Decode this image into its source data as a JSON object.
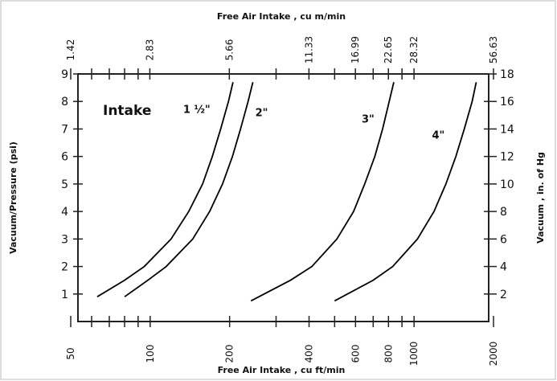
{
  "chart_data": {
    "type": "line",
    "title_top": "Free Air Intake , cu m/min",
    "xlabel": "Free Air Intake , cu ft/min",
    "ylabel": "Vacuum/Pressure (psi)",
    "y2label": "Vacuum , in. of Hg",
    "annotation": "Intake",
    "xscale": "log",
    "xlim": [
      50,
      2000
    ],
    "xticks": [
      50,
      100,
      200,
      400,
      600,
      800,
      1000,
      2000
    ],
    "xminor_ticks": [
      60,
      70,
      80,
      90,
      300,
      500,
      700,
      900
    ],
    "x2lim": [
      1.42,
      56.63
    ],
    "x2ticks": [
      1.42,
      2.83,
      5.66,
      11.33,
      16.99,
      22.65,
      28.32,
      56.63
    ],
    "ylim": [
      0,
      9
    ],
    "yticks": [
      1,
      2,
      3,
      4,
      5,
      6,
      7,
      8,
      9
    ],
    "y2lim": [
      0,
      18
    ],
    "y2ticks": [
      2,
      4,
      6,
      8,
      10,
      12,
      14,
      16,
      18
    ],
    "color": "#000000",
    "series": [
      {
        "name": "1 ½\"",
        "x": [
          63,
          80,
          95,
          120,
          140,
          158,
          172,
          185,
          198,
          206
        ],
        "y": [
          0.9,
          1.5,
          2,
          3,
          4,
          5,
          6,
          7,
          8,
          8.7
        ]
      },
      {
        "name": "2\"",
        "x": [
          80,
          98,
          115,
          145,
          168,
          188,
          205,
          220,
          235,
          245
        ],
        "y": [
          0.9,
          1.5,
          2,
          3,
          4,
          5,
          6,
          7,
          8,
          8.7
        ]
      },
      {
        "name": "3\"",
        "x": [
          241,
          340,
          410,
          510,
          590,
          650,
          710,
          760,
          805,
          838
        ],
        "y": [
          0.75,
          1.5,
          2,
          3,
          4,
          5,
          6,
          7,
          8,
          8.7
        ]
      },
      {
        "name": "4\"",
        "x": [
          500,
          700,
          830,
          1030,
          1190,
          1320,
          1440,
          1550,
          1660,
          1720
        ],
        "y": [
          0.75,
          1.5,
          2,
          3,
          4,
          5,
          6,
          7,
          8,
          8.7
        ]
      }
    ]
  }
}
